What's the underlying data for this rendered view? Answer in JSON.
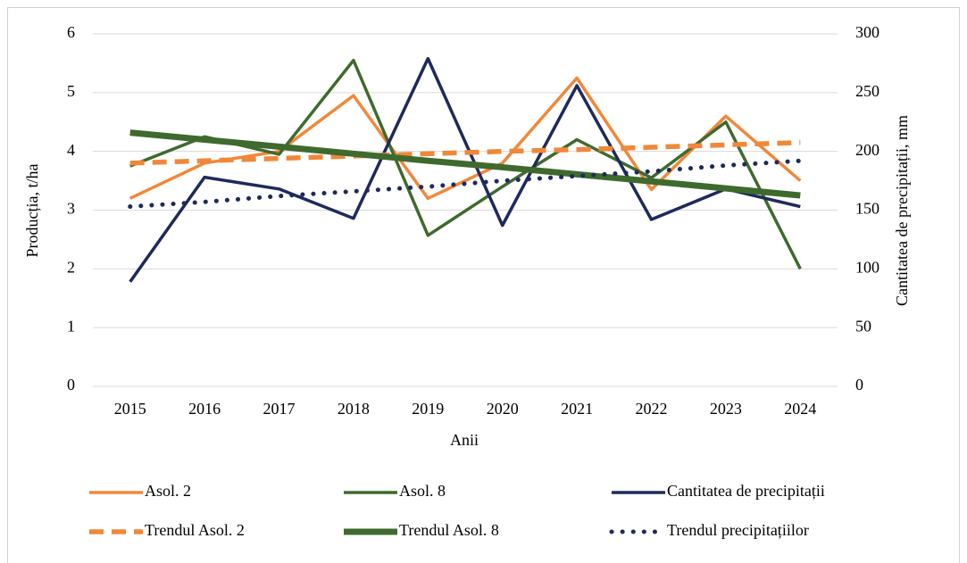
{
  "chart_data": {
    "type": "line",
    "categories": [
      "2015",
      "2016",
      "2017",
      "2018",
      "2019",
      "2020",
      "2021",
      "2022",
      "2023",
      "2024"
    ],
    "x_label": "Anii",
    "y_label": "Producția, t/ha",
    "y2_label": "Cantitatea de precipitații, mm",
    "ylim": [
      0,
      6
    ],
    "yticks": [
      0,
      1,
      2,
      3,
      4,
      5,
      6
    ],
    "y2lim": [
      0,
      300
    ],
    "y2ticks": [
      0,
      50,
      100,
      150,
      200,
      250,
      300
    ],
    "legend": "bottom",
    "series": [
      {
        "name": "Asol. 2",
        "color": "#f0883a",
        "style": "solid",
        "values": [
          3.2,
          3.8,
          4.0,
          4.95,
          3.2,
          3.8,
          5.25,
          3.35,
          4.6,
          3.5
        ]
      },
      {
        "name": "Asol. 8",
        "color": "#3f6a2e",
        "style": "solid",
        "values": [
          3.75,
          4.25,
          3.95,
          5.55,
          2.57,
          3.4,
          4.2,
          3.55,
          4.5,
          2.0
        ]
      },
      {
        "name": "Cantitatea de precipitații",
        "color": "#1f2a5c",
        "style": "solid",
        "axis": "y2",
        "values": [
          89,
          178,
          168,
          143,
          279,
          137,
          256,
          142,
          168,
          153
        ]
      },
      {
        "name": "Trendul Asol. 2",
        "color": "#f0883a",
        "style": "dashed",
        "values": [
          3.8,
          3.84,
          3.88,
          3.92,
          3.96,
          4.0,
          4.03,
          4.07,
          4.11,
          4.15
        ]
      },
      {
        "name": "Trendul Asol. 8",
        "color": "#3f6a2e",
        "style": "thick",
        "values": [
          4.32,
          4.2,
          4.08,
          3.96,
          3.84,
          3.73,
          3.61,
          3.49,
          3.37,
          3.25
        ]
      },
      {
        "name": "Trendul precipitațiilor",
        "color": "#1f2a5c",
        "style": "dotted",
        "axis": "y2",
        "values": [
          153,
          157,
          162,
          166,
          170,
          175,
          179,
          183,
          188,
          192
        ]
      }
    ]
  }
}
